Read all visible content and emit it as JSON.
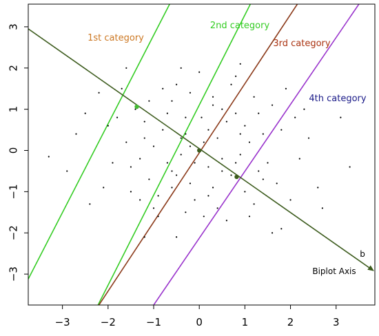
{
  "chart_data": {
    "type": "scatter",
    "title": "",
    "xlabel": "",
    "ylabel": "",
    "xlim": [
      -3.75,
      3.85
    ],
    "ylim": [
      -3.75,
      3.55
    ],
    "xticks": [
      "−3",
      "−2",
      "−1",
      "0",
      "1",
      "2",
      "3"
    ],
    "yticks": [
      "−3",
      "−2",
      "−1",
      "0",
      "1",
      "2",
      "3"
    ],
    "xtick_values": [
      -3,
      -2,
      -1,
      0,
      1,
      2,
      3
    ],
    "ytick_values": [
      -3,
      -2,
      -1,
      0,
      1,
      2,
      3
    ],
    "grid": false,
    "biplot_axis": {
      "start": [
        -3.75,
        2.95
      ],
      "end": [
        3.85,
        -2.95
      ],
      "label": "b",
      "caption": "Biplot Axis",
      "color": "#3d5c1e",
      "markers": [
        {
          "x": -1.37,
          "y": 1.06,
          "color": "#44bb33"
        },
        {
          "x": 0.0,
          "y": 0.0,
          "color": "#3d5c1e"
        },
        {
          "x": 0.82,
          "y": -0.64,
          "color": "#3d5c1e"
        }
      ]
    },
    "category_lines": [
      {
        "name": "1st category",
        "color": "#33cc22",
        "label_color": "#cc7722",
        "points": [
          [
            -3.75,
            -3.12
          ],
          [
            -0.65,
            3.55
          ]
        ]
      },
      {
        "name": "2nd category",
        "color": "#33cc22",
        "label_color": "#33cc22",
        "points": [
          [
            -2.22,
            -3.75
          ],
          [
            1.12,
            3.55
          ]
        ]
      },
      {
        "name": "3rd category",
        "color": "#8b3a1a",
        "label_color": "#aa3311",
        "points": [
          [
            -2.2,
            -3.75
          ],
          [
            2.15,
            3.55
          ]
        ]
      },
      {
        "name": "4th category",
        "color": "#9933cc",
        "label_color": "#1a1a88",
        "points": [
          [
            -1.0,
            -3.75
          ],
          [
            3.5,
            3.55
          ]
        ]
      }
    ],
    "series": [
      {
        "type": "scatter",
        "color": "#000000",
        "points": [
          [
            0.0,
            0.0
          ],
          [
            0.1,
            0.2
          ],
          [
            -0.3,
            0.4
          ],
          [
            0.5,
            -0.2
          ],
          [
            -0.6,
            -0.5
          ],
          [
            0.8,
            0.9
          ],
          [
            -1.2,
            0.3
          ],
          [
            1.4,
            -0.7
          ],
          [
            -0.9,
            -1.1
          ],
          [
            0.3,
            1.3
          ],
          [
            -0.2,
            -0.8
          ],
          [
            1.1,
            0.2
          ],
          [
            -1.5,
            -0.4
          ],
          [
            0.6,
            0.7
          ],
          [
            -0.7,
            0.9
          ],
          [
            1.8,
            0.5
          ],
          [
            -1.8,
            0.8
          ],
          [
            0.4,
            -1.4
          ],
          [
            -0.5,
            1.6
          ],
          [
            1.2,
            -1.3
          ],
          [
            2.2,
            -0.2
          ],
          [
            -2.1,
            -0.9
          ],
          [
            0.2,
            0.5
          ],
          [
            -0.1,
            -0.3
          ],
          [
            0.7,
            -0.6
          ],
          [
            -1.0,
            0.1
          ],
          [
            1.6,
            1.1
          ],
          [
            -1.3,
            -1.2
          ],
          [
            0.9,
            -0.1
          ],
          [
            -0.4,
            -0.1
          ],
          [
            0.05,
            0.8
          ],
          [
            -0.8,
            0.5
          ],
          [
            1.0,
            0.6
          ],
          [
            -1.1,
            -0.7
          ],
          [
            0.3,
            -0.9
          ],
          [
            -0.6,
            1.2
          ],
          [
            1.5,
            -0.3
          ],
          [
            -1.6,
            0.2
          ],
          [
            0.5,
            1.0
          ],
          [
            -0.2,
            1.4
          ],
          [
            2.6,
            -0.9
          ],
          [
            -2.7,
            0.4
          ],
          [
            3.3,
            -0.4
          ],
          [
            -3.3,
            -0.15
          ],
          [
            1.8,
            -1.9
          ],
          [
            -1.6,
            2.0
          ],
          [
            0.9,
            2.1
          ],
          [
            -0.5,
            -2.1
          ],
          [
            1.9,
            1.5
          ],
          [
            -2.2,
            1.4
          ],
          [
            0.1,
            -1.6
          ],
          [
            1.3,
            0.9
          ],
          [
            -1.4,
            1.0
          ],
          [
            0.6,
            -1.7
          ],
          [
            -0.9,
            -1.6
          ],
          [
            2.1,
            0.8
          ],
          [
            -0.2,
            0.1
          ],
          [
            0.4,
            0.3
          ],
          [
            -0.5,
            -0.6
          ],
          [
            0.8,
            -0.3
          ],
          [
            -1.2,
            0.7
          ],
          [
            1.0,
            -1.0
          ],
          [
            -0.7,
            -0.3
          ],
          [
            0.2,
            -0.4
          ],
          [
            1.7,
            -0.8
          ],
          [
            -1.9,
            -0.3
          ],
          [
            0.3,
            1.1
          ],
          [
            -0.3,
            0.8
          ],
          [
            1.4,
            0.4
          ],
          [
            -1.0,
            -1.4
          ],
          [
            2.4,
            0.3
          ],
          [
            -2.4,
            -1.3
          ],
          [
            0.7,
            1.6
          ],
          [
            -0.8,
            1.5
          ],
          [
            1.1,
            -1.6
          ],
          [
            -1.5,
            -1.0
          ],
          [
            0.0,
            1.9
          ],
          [
            -0.1,
            -1.2
          ],
          [
            2.0,
            -1.2
          ],
          [
            -2.0,
            0.6
          ],
          [
            2.7,
            -1.4
          ],
          [
            -1.7,
            1.5
          ],
          [
            0.5,
            -0.5
          ],
          [
            -0.4,
            0.3
          ],
          [
            0.9,
            0.4
          ],
          [
            -0.6,
            -0.9
          ],
          [
            1.2,
            1.3
          ],
          [
            -1.1,
            1.2
          ],
          [
            0.2,
            -1.1
          ],
          [
            -0.3,
            -1.5
          ],
          [
            3.1,
            0.8
          ],
          [
            -2.9,
            -0.5
          ],
          [
            1.6,
            -2.0
          ],
          [
            -1.2,
            -2.1
          ],
          [
            0.8,
            1.8
          ],
          [
            -0.4,
            2.0
          ],
          [
            2.3,
            1.0
          ],
          [
            -2.5,
            0.9
          ],
          [
            1.3,
            -0.5
          ],
          [
            -1.3,
            -0.2
          ]
        ]
      }
    ]
  }
}
